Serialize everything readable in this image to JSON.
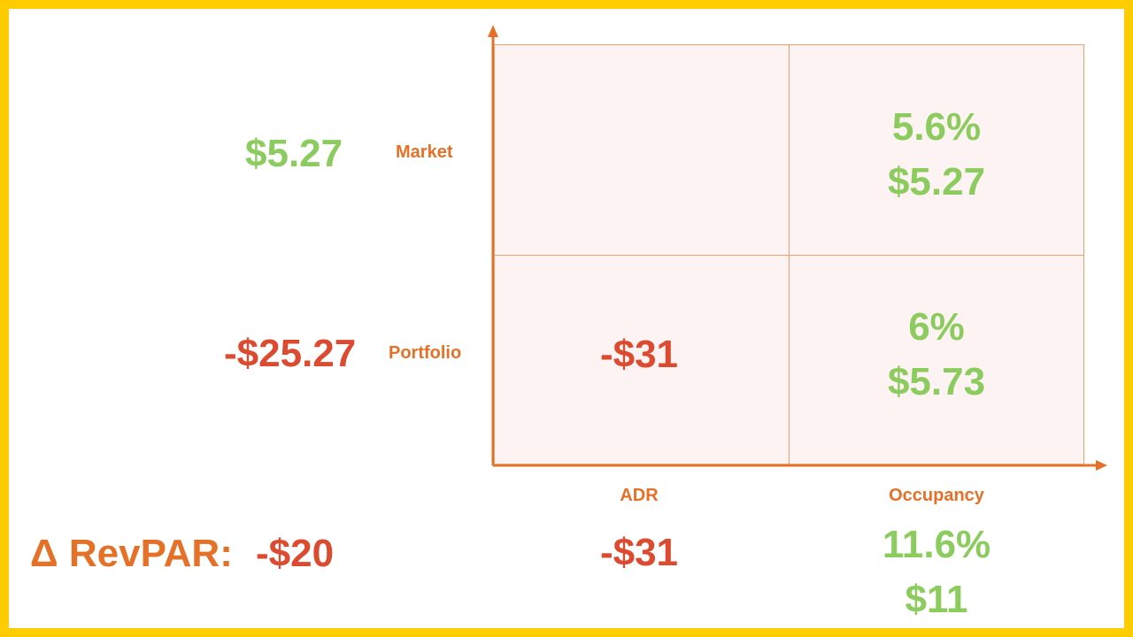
{
  "colors": {
    "frame": "#FFCC00",
    "accent_orange": "#E57128",
    "negative_red": "#DC4A30",
    "positive_green": "#8CCB5E",
    "cell_fill": "#FDF3F2",
    "grid_line": "#E9A06B"
  },
  "rows": {
    "market": {
      "label": "Market",
      "total": "$5.27"
    },
    "portfolio": {
      "label": "Portfolio",
      "total": "-$25.27"
    }
  },
  "columns": {
    "adr": {
      "label": "ADR",
      "total": "-$31"
    },
    "occupancy": {
      "label": "Occupancy",
      "total_pct": "11.6%",
      "total_value": "$11"
    }
  },
  "cells": {
    "market_adr": "",
    "market_occupancy": {
      "pct": "5.6%",
      "value": "$5.27"
    },
    "portfolio_adr": "-$31",
    "portfolio_occupancy": {
      "pct": "6%",
      "value": "$5.73"
    }
  },
  "summary": {
    "label": "Δ RevPAR:",
    "value": "-$20"
  }
}
